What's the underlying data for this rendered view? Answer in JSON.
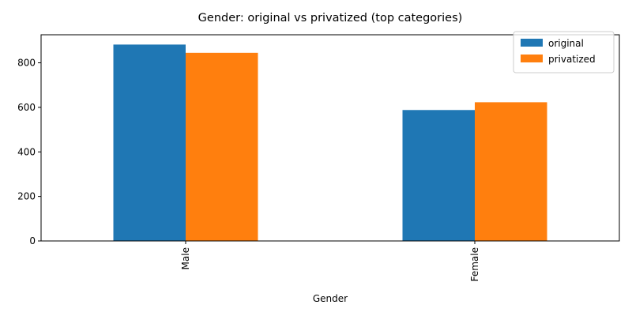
{
  "chart_data": {
    "type": "bar",
    "title": "Gender: original vs privatized (top categories)",
    "xlabel": "Gender",
    "ylabel": "",
    "categories": [
      "Male",
      "Female"
    ],
    "series": [
      {
        "name": "original",
        "values": [
          882,
          588
        ],
        "color": "#1f77b4"
      },
      {
        "name": "privatized",
        "values": [
          845,
          623
        ],
        "color": "#ff7f0e"
      }
    ],
    "ylim": [
      0,
      926
    ],
    "yticks": [
      0,
      200,
      400,
      600,
      800
    ],
    "legend_position": "top-right",
    "grid": false,
    "tick_label_rotation": "vertical"
  }
}
